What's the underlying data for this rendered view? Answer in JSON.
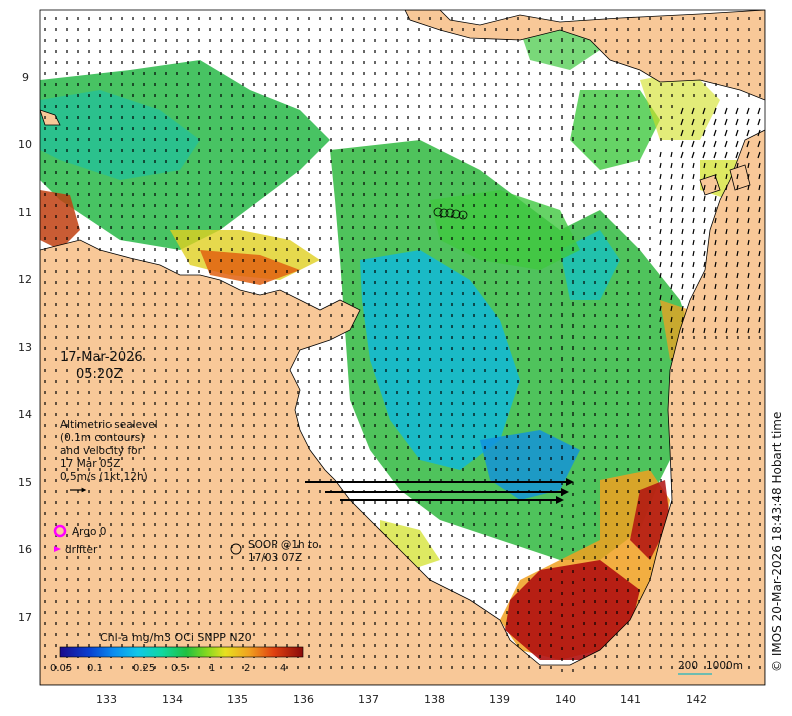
{
  "map": {
    "date_line1": "17-Mar-2026",
    "date_line2": "05:20Z",
    "legend_text": [
      "Altimetric sealevel",
      "(0.1m contours)",
      "and velocity for",
      "17 Mar 05Z",
      "0.5m/s (1kt 12h)"
    ],
    "argo_label": "Argo 0",
    "drifter_label": "drifter",
    "soop_label_line1": "SOOP @1h to",
    "soop_label_line2": "17/03 07Z",
    "scale_label_1": "200",
    "scale_label_2": "1000m",
    "copyright": "© IMOS 20-Mar-2026 18:43:48 Hobart time",
    "colorbar_title": "Chl-a mg/m3 OCi SNPP N20",
    "colorbar_ticks": [
      "0.05",
      "0.1",
      "0.25",
      "0.5",
      "1",
      "2",
      "4"
    ],
    "x_ticks": [
      "133",
      "134",
      "135",
      "136",
      "137",
      "138",
      "139",
      "140",
      "141",
      "142"
    ],
    "y_ticks": [
      "9",
      "10",
      "11",
      "12",
      "13",
      "14",
      "15",
      "16",
      "17"
    ],
    "colors": {
      "land": "#f8c898",
      "coast": "#000000",
      "argo": "#ff00ff",
      "scale": "#40b8b8"
    },
    "colorbar_colors": [
      "#1a0a8c",
      "#0a3fd0",
      "#0a8cf0",
      "#10c8e8",
      "#10d8a0",
      "#20c040",
      "#60d020",
      "#b0e020",
      "#f0e020",
      "#f0a020",
      "#e05010",
      "#c01010",
      "#8a0a0a"
    ]
  }
}
